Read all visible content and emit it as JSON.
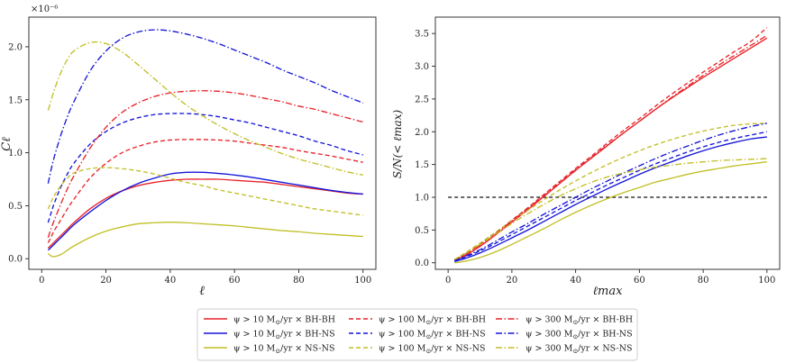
{
  "colors": {
    "red": "#e8232a",
    "blue": "#1515d9",
    "olive": "#c2bf27",
    "reference": "#111111",
    "axis": "#222222"
  },
  "chart_data": [
    {
      "type": "line",
      "panel": "left",
      "xlabel": "ℓ",
      "ylabel": "Cℓ",
      "offset_label": "×10⁻⁶",
      "xlim": [
        -4,
        104
      ],
      "ylim": [
        -0.1,
        2.28
      ],
      "xticks": [
        0,
        20,
        40,
        60,
        80,
        100
      ],
      "xtick_labels": [
        "0",
        "20",
        "40",
        "60",
        "80",
        "100"
      ],
      "yticks": [
        0,
        0.5,
        1,
        1.5,
        2
      ],
      "ytick_labels": [
        "0.0",
        "0.5",
        "1.0",
        "1.5",
        "2.0"
      ],
      "x": [
        2,
        3,
        4,
        6,
        8,
        10,
        15,
        20,
        25,
        30,
        35,
        40,
        45,
        50,
        55,
        60,
        65,
        70,
        75,
        80,
        85,
        90,
        95,
        100
      ],
      "series": [
        {
          "name": "ψ > 10 M⊙/yr × BH-BH",
          "color": "red",
          "dash": "solid",
          "values": [
            0.1,
            0.13,
            0.16,
            0.22,
            0.28,
            0.34,
            0.47,
            0.57,
            0.64,
            0.69,
            0.72,
            0.74,
            0.75,
            0.75,
            0.75,
            0.74,
            0.73,
            0.72,
            0.7,
            0.68,
            0.66,
            0.64,
            0.62,
            0.61
          ]
        },
        {
          "name": "ψ > 10 M⊙/yr × BH-NS",
          "color": "blue",
          "dash": "solid",
          "values": [
            0.08,
            0.11,
            0.14,
            0.2,
            0.26,
            0.32,
            0.44,
            0.55,
            0.64,
            0.71,
            0.76,
            0.8,
            0.815,
            0.815,
            0.805,
            0.79,
            0.77,
            0.745,
            0.72,
            0.695,
            0.67,
            0.645,
            0.625,
            0.61
          ]
        },
        {
          "name": "ψ > 10 M⊙/yr × NS-NS",
          "color": "olive",
          "dash": "solid",
          "values": [
            0.05,
            0.025,
            0.02,
            0.04,
            0.08,
            0.12,
            0.2,
            0.26,
            0.3,
            0.33,
            0.34,
            0.345,
            0.34,
            0.33,
            0.32,
            0.31,
            0.295,
            0.28,
            0.265,
            0.255,
            0.24,
            0.23,
            0.22,
            0.21
          ]
        },
        {
          "name": "ψ > 100 M⊙/yr × BH-BH",
          "color": "red",
          "dash": "dashed",
          "values": [
            0.15,
            0.21,
            0.27,
            0.37,
            0.47,
            0.56,
            0.76,
            0.9,
            1.0,
            1.06,
            1.1,
            1.12,
            1.125,
            1.125,
            1.12,
            1.11,
            1.09,
            1.07,
            1.05,
            1.02,
            0.995,
            0.97,
            0.94,
            0.91
          ]
        },
        {
          "name": "ψ > 100 M⊙/yr × BH-NS",
          "color": "blue",
          "dash": "dashed",
          "values": [
            0.34,
            0.44,
            0.53,
            0.68,
            0.8,
            0.9,
            1.08,
            1.2,
            1.28,
            1.33,
            1.36,
            1.37,
            1.37,
            1.36,
            1.34,
            1.31,
            1.28,
            1.24,
            1.2,
            1.16,
            1.11,
            1.07,
            1.02,
            0.98
          ]
        },
        {
          "name": "ψ > 100 M⊙/yr × NS-NS",
          "color": "olive",
          "dash": "dashed",
          "values": [
            0.47,
            0.54,
            0.6,
            0.69,
            0.76,
            0.81,
            0.85,
            0.86,
            0.85,
            0.83,
            0.8,
            0.76,
            0.72,
            0.69,
            0.65,
            0.62,
            0.59,
            0.56,
            0.53,
            0.5,
            0.47,
            0.45,
            0.43,
            0.41
          ]
        },
        {
          "name": "ψ > 300 M⊙/yr × BH-BH",
          "color": "red",
          "dash": "dashdot",
          "values": [
            0.2,
            0.29,
            0.37,
            0.52,
            0.66,
            0.78,
            1.04,
            1.24,
            1.38,
            1.47,
            1.53,
            1.565,
            1.58,
            1.585,
            1.58,
            1.565,
            1.54,
            1.51,
            1.48,
            1.44,
            1.41,
            1.37,
            1.33,
            1.29
          ]
        },
        {
          "name": "ψ > 300 M⊙/yr × BH-NS",
          "color": "blue",
          "dash": "dashdot",
          "values": [
            0.71,
            0.85,
            0.97,
            1.17,
            1.34,
            1.48,
            1.77,
            1.96,
            2.08,
            2.14,
            2.16,
            2.15,
            2.12,
            2.08,
            2.03,
            1.97,
            1.91,
            1.85,
            1.78,
            1.72,
            1.66,
            1.59,
            1.53,
            1.47
          ]
        },
        {
          "name": "ψ > 300 M⊙/yr × NS-NS",
          "color": "olive",
          "dash": "dashdot",
          "values": [
            1.4,
            1.5,
            1.6,
            1.76,
            1.88,
            1.96,
            2.04,
            2.03,
            1.95,
            1.83,
            1.7,
            1.57,
            1.45,
            1.35,
            1.26,
            1.18,
            1.11,
            1.05,
            0.99,
            0.94,
            0.9,
            0.86,
            0.82,
            0.79
          ]
        }
      ]
    },
    {
      "type": "line",
      "panel": "right",
      "xlabel": "ℓmax",
      "ylabel": "S/N(< ℓmax)",
      "xlim": [
        -4,
        104
      ],
      "ylim": [
        -0.1,
        3.75
      ],
      "xticks": [
        0,
        20,
        40,
        60,
        80,
        100
      ],
      "xtick_labels": [
        "0",
        "20",
        "40",
        "60",
        "80",
        "100"
      ],
      "yticks": [
        0,
        0.5,
        1,
        1.5,
        2,
        2.5,
        3,
        3.5
      ],
      "ytick_labels": [
        "0.0",
        "0.5",
        "1.0",
        "1.5",
        "2.0",
        "2.5",
        "3.0",
        "3.5"
      ],
      "reference_line": {
        "y": 1.0,
        "x_range": [
          0,
          100
        ],
        "style": "dashed",
        "color": "reference"
      },
      "x": [
        2,
        5,
        10,
        15,
        20,
        25,
        30,
        35,
        40,
        45,
        50,
        55,
        60,
        65,
        70,
        75,
        80,
        85,
        90,
        95,
        100
      ],
      "series": [
        {
          "name": "ψ > 10 M⊙/yr × BH-BH",
          "color": "red",
          "dash": "solid",
          "values": [
            0.03,
            0.1,
            0.25,
            0.43,
            0.62,
            0.81,
            1.01,
            1.21,
            1.41,
            1.6,
            1.79,
            1.98,
            2.16,
            2.34,
            2.51,
            2.67,
            2.83,
            2.98,
            3.13,
            3.28,
            3.43
          ]
        },
        {
          "name": "ψ > 10 M⊙/yr × BH-NS",
          "color": "blue",
          "dash": "solid",
          "values": [
            0.02,
            0.06,
            0.15,
            0.26,
            0.38,
            0.5,
            0.63,
            0.76,
            0.89,
            1.01,
            1.13,
            1.24,
            1.35,
            1.45,
            1.54,
            1.63,
            1.71,
            1.78,
            1.84,
            1.89,
            1.92
          ]
        },
        {
          "name": "ψ > 10 M⊙/yr × NS-NS",
          "color": "olive",
          "dash": "solid",
          "values": [
            0.0,
            0.02,
            0.08,
            0.17,
            0.28,
            0.4,
            0.52,
            0.65,
            0.77,
            0.88,
            0.98,
            1.07,
            1.15,
            1.23,
            1.29,
            1.35,
            1.4,
            1.44,
            1.48,
            1.51,
            1.54
          ]
        },
        {
          "name": "ψ > 100 M⊙/yr × BH-BH",
          "color": "red",
          "dash": "dashed",
          "values": [
            0.04,
            0.12,
            0.28,
            0.46,
            0.65,
            0.84,
            1.04,
            1.24,
            1.44,
            1.63,
            1.83,
            2.02,
            2.2,
            2.39,
            2.57,
            2.74,
            2.91,
            3.07,
            3.23,
            3.38,
            3.59
          ]
        },
        {
          "name": "ψ > 100 M⊙/yr × BH-NS",
          "color": "blue",
          "dash": "dashed",
          "values": [
            0.03,
            0.08,
            0.18,
            0.3,
            0.43,
            0.56,
            0.69,
            0.82,
            0.95,
            1.07,
            1.19,
            1.3,
            1.41,
            1.51,
            1.6,
            1.69,
            1.77,
            1.84,
            1.9,
            1.95,
            2.0
          ]
        },
        {
          "name": "ψ > 100 M⊙/yr × NS-NS",
          "color": "olive",
          "dash": "dashed",
          "values": [
            0.05,
            0.14,
            0.3,
            0.47,
            0.64,
            0.8,
            0.96,
            1.11,
            1.25,
            1.38,
            1.5,
            1.61,
            1.71,
            1.8,
            1.88,
            1.95,
            2.01,
            2.06,
            2.1,
            2.12,
            2.13
          ]
        },
        {
          "name": "ψ > 300 M⊙/yr × BH-BH",
          "color": "red",
          "dash": "dashdot",
          "values": [
            0.04,
            0.12,
            0.27,
            0.45,
            0.64,
            0.83,
            1.02,
            1.22,
            1.42,
            1.61,
            1.8,
            1.98,
            2.16,
            2.34,
            2.52,
            2.69,
            2.86,
            3.02,
            3.17,
            3.32,
            3.47
          ]
        },
        {
          "name": "ψ > 300 M⊙/yr × BH-NS",
          "color": "blue",
          "dash": "dashdot",
          "values": [
            0.03,
            0.09,
            0.2,
            0.33,
            0.47,
            0.6,
            0.74,
            0.87,
            1.0,
            1.13,
            1.25,
            1.37,
            1.48,
            1.59,
            1.69,
            1.78,
            1.87,
            1.95,
            2.02,
            2.08,
            2.13
          ]
        },
        {
          "name": "ψ > 300 M⊙/yr × NS-NS",
          "color": "olive",
          "dash": "dashdot",
          "values": [
            0.05,
            0.13,
            0.28,
            0.44,
            0.6,
            0.75,
            0.89,
            1.02,
            1.13,
            1.23,
            1.31,
            1.37,
            1.42,
            1.46,
            1.49,
            1.52,
            1.54,
            1.56,
            1.57,
            1.58,
            1.59
          ]
        }
      ]
    }
  ],
  "legend": {
    "placement": "bottom-center",
    "columns": 3,
    "entries": [
      {
        "prefix": "ψ > 10 M",
        "sub": "⊙",
        "suffix": "/yr × BH-BH",
        "color": "red",
        "dash": "solid"
      },
      {
        "prefix": "ψ > 10 M",
        "sub": "⊙",
        "suffix": "/yr × BH-NS",
        "color": "blue",
        "dash": "solid"
      },
      {
        "prefix": "ψ > 10 M",
        "sub": "⊙",
        "suffix": "/yr × NS-NS",
        "color": "olive",
        "dash": "solid"
      },
      {
        "prefix": "ψ > 100 M",
        "sub": "⊙",
        "suffix": "/yr × BH-BH",
        "color": "red",
        "dash": "dashed"
      },
      {
        "prefix": "ψ > 100 M",
        "sub": "⊙",
        "suffix": "/yr × BH-NS",
        "color": "blue",
        "dash": "dashed"
      },
      {
        "prefix": "ψ > 100 M",
        "sub": "⊙",
        "suffix": "/yr × NS-NS",
        "color": "olive",
        "dash": "dashed"
      },
      {
        "prefix": "ψ > 300 M",
        "sub": "⊙",
        "suffix": "/yr × BH-BH",
        "color": "red",
        "dash": "dashdot"
      },
      {
        "prefix": "ψ > 300 M",
        "sub": "⊙",
        "suffix": "/yr × BH-NS",
        "color": "blue",
        "dash": "dashdot"
      },
      {
        "prefix": "ψ > 300 M",
        "sub": "⊙",
        "suffix": "/yr × NS-NS",
        "color": "olive",
        "dash": "dashdot"
      }
    ]
  }
}
